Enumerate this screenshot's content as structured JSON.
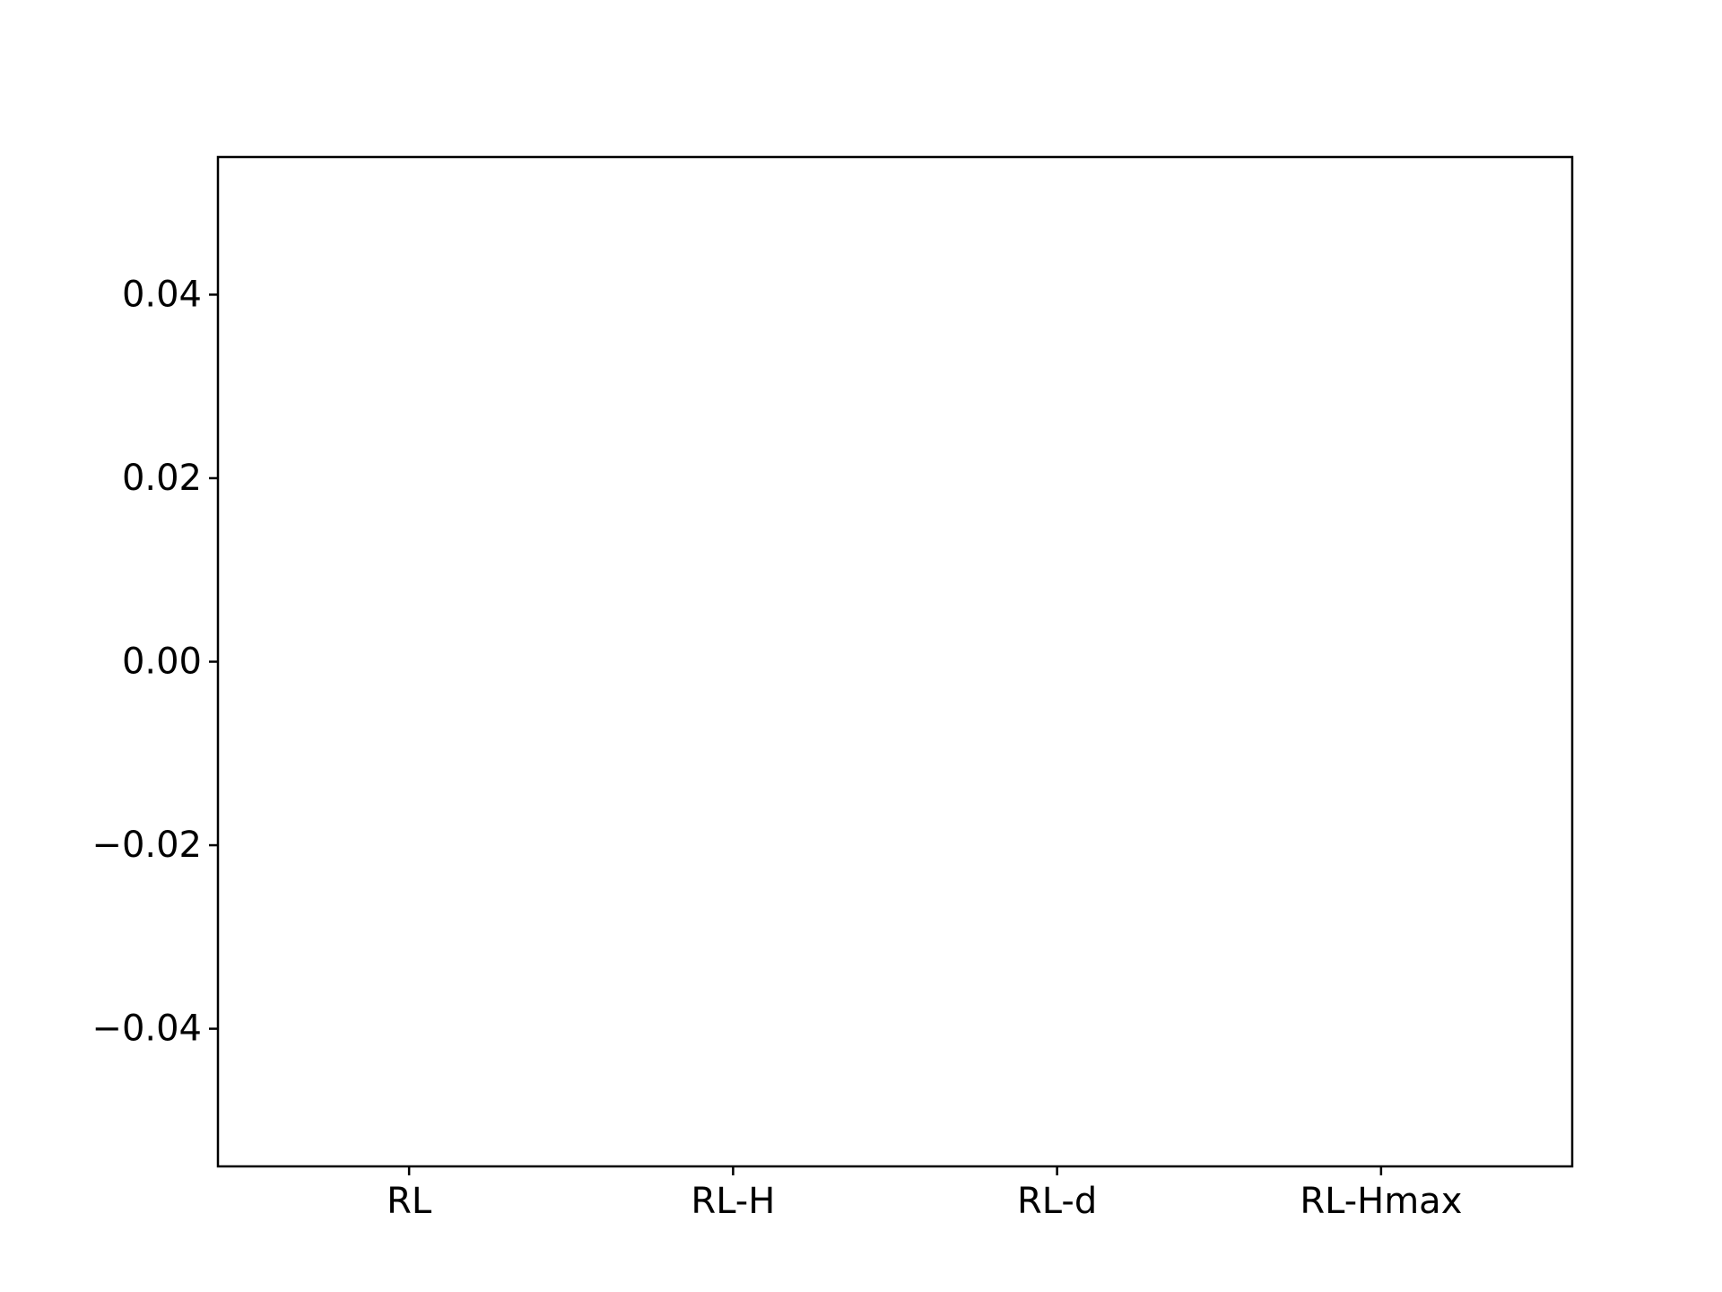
{
  "chart_data": {
    "type": "bar",
    "title": "",
    "xlabel": "",
    "ylabel": "",
    "categories": [
      "RL",
      "RL-H",
      "RL-d",
      "RL-Hmax"
    ],
    "values": [
      0,
      0,
      0,
      0
    ],
    "ylim": [
      -0.055,
      0.055
    ],
    "yticks": [
      0.04,
      0.02,
      0.0,
      -0.02,
      -0.04
    ],
    "ytick_labels": [
      "0.04",
      "0.02",
      "0.00",
      "−0.02",
      "−0.04"
    ],
    "grid": false,
    "legend": "none",
    "colors": {
      "axes": "#000000",
      "background": "#ffffff",
      "bar": "#1f77b4"
    }
  }
}
